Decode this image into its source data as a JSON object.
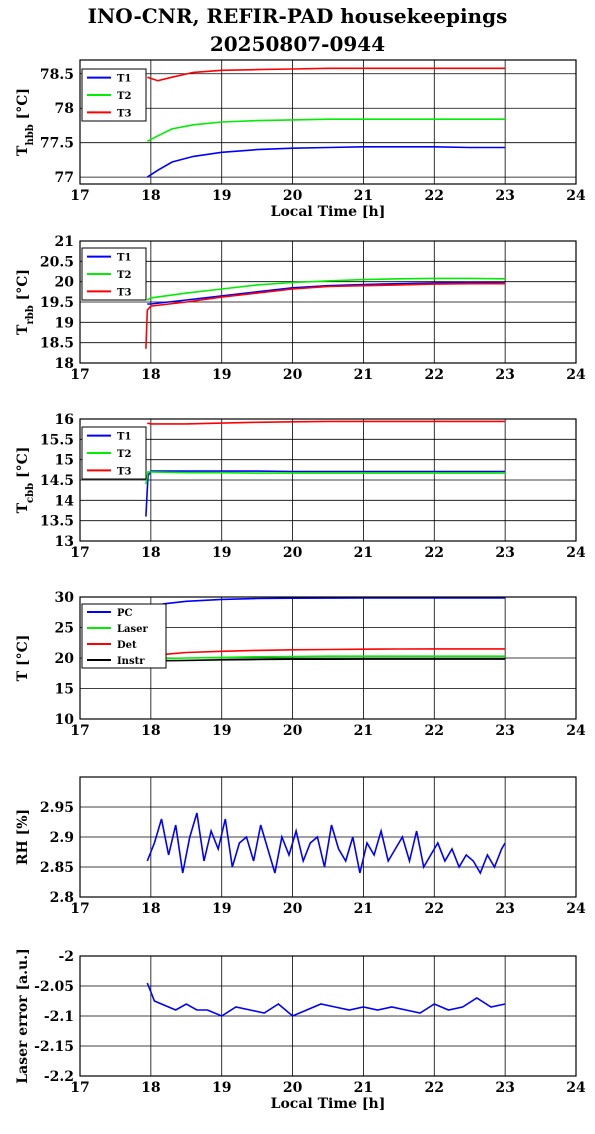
{
  "title": "INO-CNR, REFIR-PAD housekeepings",
  "subtitle": "20250807-0944",
  "chart_data": [
    {
      "type": "line",
      "ylabel_main": "T",
      "ylabel_sub": "hbb",
      "ylabel_unit": " [°C]",
      "xlabel": "Local Time [h]",
      "xlim": [
        17,
        24
      ],
      "xticks": [
        17,
        18,
        19,
        20,
        21,
        22,
        23,
        24
      ],
      "ylim": [
        76.9,
        78.7
      ],
      "yticks": [
        77,
        77.5,
        78,
        78.5
      ],
      "ytick_labels": [
        "77",
        "77.5",
        "78",
        "78.5"
      ],
      "gridlines": [
        77,
        77.5,
        78,
        78.5
      ],
      "grid": true,
      "legend": "top-left",
      "series": [
        {
          "name": "T1",
          "color": "#0000ff",
          "x": [
            17.95,
            18.1,
            18.3,
            18.6,
            19,
            19.5,
            20,
            20.5,
            21,
            21.5,
            22,
            22.5,
            23
          ],
          "y": [
            77.0,
            77.1,
            77.22,
            77.3,
            77.36,
            77.4,
            77.42,
            77.43,
            77.44,
            77.44,
            77.44,
            77.43,
            77.43
          ]
        },
        {
          "name": "T2",
          "color": "#00ee00",
          "x": [
            17.95,
            18.1,
            18.3,
            18.6,
            19,
            19.5,
            20,
            20.5,
            21,
            21.5,
            22,
            22.5,
            23
          ],
          "y": [
            77.52,
            77.6,
            77.7,
            77.76,
            77.8,
            77.82,
            77.83,
            77.84,
            77.84,
            77.84,
            77.84,
            77.84,
            77.84
          ]
        },
        {
          "name": "T3",
          "color": "#ff0000",
          "x": [
            17.95,
            18.1,
            18.3,
            18.6,
            19,
            19.5,
            20,
            20.5,
            21,
            21.5,
            22,
            22.5,
            23
          ],
          "y": [
            78.45,
            78.4,
            78.45,
            78.52,
            78.55,
            78.56,
            78.57,
            78.58,
            78.58,
            78.58,
            78.58,
            78.58,
            78.58
          ]
        }
      ]
    },
    {
      "type": "line",
      "ylabel_main": "T",
      "ylabel_sub": "rbb",
      "ylabel_unit": " [°C]",
      "xlabel": "",
      "xlim": [
        17,
        24
      ],
      "xticks": [
        17,
        18,
        19,
        20,
        21,
        22,
        23,
        24
      ],
      "ylim": [
        18,
        21
      ],
      "yticks": [
        18,
        18.5,
        19,
        19.5,
        20,
        20.5,
        21
      ],
      "ytick_labels": [
        "18",
        "18.5",
        "19",
        "19.5",
        "20",
        "20.5",
        "21"
      ],
      "gridlines": [
        18.5,
        19,
        19.5,
        20,
        20.5
      ],
      "grid": true,
      "legend": "top-left",
      "series": [
        {
          "name": "T1",
          "color": "#0000ff",
          "x": [
            17.95,
            18.0,
            18.5,
            19,
            19.5,
            20,
            20.5,
            21,
            21.5,
            22,
            22.5,
            23
          ],
          "y": [
            19.45,
            19.45,
            19.55,
            19.65,
            19.75,
            19.85,
            19.9,
            19.93,
            19.95,
            19.97,
            19.98,
            19.97
          ]
        },
        {
          "name": "T2",
          "color": "#00ee00",
          "x": [
            17.95,
            18.0,
            18.5,
            19,
            19.5,
            20,
            20.5,
            21,
            21.5,
            22,
            22.5,
            23
          ],
          "y": [
            19.55,
            19.6,
            19.72,
            19.82,
            19.92,
            19.98,
            20.02,
            20.05,
            20.07,
            20.08,
            20.08,
            20.07
          ]
        },
        {
          "name": "T3",
          "color": "#ff0000",
          "x": [
            17.93,
            17.95,
            18.0,
            18.5,
            19,
            19.5,
            20,
            20.5,
            21,
            21.5,
            22,
            22.5,
            23
          ],
          "y": [
            18.35,
            19.3,
            19.4,
            19.5,
            19.62,
            19.72,
            19.82,
            19.88,
            19.9,
            19.92,
            19.94,
            19.95,
            19.95
          ]
        }
      ]
    },
    {
      "type": "line",
      "ylabel_main": "T",
      "ylabel_sub": "cbb",
      "ylabel_unit": " [°C]",
      "xlabel": "",
      "xlim": [
        17,
        24
      ],
      "xticks": [
        17,
        18,
        19,
        20,
        21,
        22,
        23,
        24
      ],
      "ylim": [
        13,
        16
      ],
      "yticks": [
        13,
        13.5,
        14,
        14.5,
        15,
        15.5,
        16
      ],
      "ytick_labels": [
        "13",
        "13.5",
        "14",
        "14.5",
        "15",
        "15.5",
        "16"
      ],
      "gridlines": [
        13.5,
        14,
        14.5,
        15,
        15.5
      ],
      "grid": true,
      "legend": "top-left",
      "series": [
        {
          "name": "T1",
          "color": "#0000ff",
          "x": [
            17.93,
            17.96,
            18.0,
            18.5,
            19,
            19.5,
            20,
            20.5,
            21,
            21.5,
            22,
            22.5,
            23
          ],
          "y": [
            13.6,
            14.6,
            14.72,
            14.72,
            14.72,
            14.72,
            14.71,
            14.71,
            14.71,
            14.71,
            14.71,
            14.71,
            14.71
          ]
        },
        {
          "name": "T2",
          "color": "#00ee00",
          "x": [
            17.93,
            17.96,
            18.0,
            18.5,
            19,
            19.5,
            20,
            20.5,
            21,
            21.5,
            22,
            22.5,
            23
          ],
          "y": [
            14.4,
            14.7,
            14.7,
            14.68,
            14.68,
            14.67,
            14.67,
            14.67,
            14.67,
            14.67,
            14.67,
            14.67,
            14.67
          ]
        },
        {
          "name": "T3",
          "color": "#ff0000",
          "x": [
            17.95,
            18.0,
            18.5,
            19,
            19.5,
            20,
            20.5,
            21,
            21.5,
            22,
            22.5,
            23
          ],
          "y": [
            15.9,
            15.88,
            15.88,
            15.9,
            15.92,
            15.93,
            15.94,
            15.94,
            15.94,
            15.94,
            15.94,
            15.94
          ]
        }
      ]
    },
    {
      "type": "line",
      "ylabel_main": "T [°C]",
      "ylabel_sub": "",
      "ylabel_unit": "",
      "xlabel": "",
      "xlim": [
        17,
        24
      ],
      "xticks": [
        17,
        18,
        19,
        20,
        21,
        22,
        23,
        24
      ],
      "ylim": [
        10,
        30
      ],
      "yticks": [
        10,
        15,
        20,
        25,
        30
      ],
      "ytick_labels": [
        "10",
        "15",
        "20",
        "25",
        "30"
      ],
      "gridlines": [
        15,
        20,
        25
      ],
      "grid": true,
      "legend": "top-left",
      "series": [
        {
          "name": "PC",
          "color": "#0000ff",
          "x": [
            17.95,
            18.2,
            18.5,
            19,
            19.5,
            20,
            20.5,
            21,
            21.5,
            22,
            22.5,
            23
          ],
          "y": [
            28.3,
            28.9,
            29.3,
            29.6,
            29.75,
            29.8,
            29.82,
            29.83,
            29.84,
            29.84,
            29.84,
            29.84
          ]
        },
        {
          "name": "Laser",
          "color": "#00ee00",
          "x": [
            17.95,
            18.5,
            19,
            19.5,
            20,
            20.5,
            21,
            21.5,
            22,
            22.5,
            23
          ],
          "y": [
            19.8,
            20.0,
            20.1,
            20.2,
            20.25,
            20.3,
            20.3,
            20.3,
            20.3,
            20.3,
            20.3
          ]
        },
        {
          "name": "Det",
          "color": "#ff0000",
          "x": [
            17.95,
            18.2,
            18.5,
            19,
            19.5,
            20,
            20.5,
            21,
            21.5,
            22,
            22.5,
            23
          ],
          "y": [
            20.2,
            20.6,
            20.9,
            21.1,
            21.25,
            21.35,
            21.4,
            21.45,
            21.48,
            21.5,
            21.5,
            21.5
          ]
        },
        {
          "name": "Instr",
          "color": "#000000",
          "x": [
            17.95,
            18.5,
            19,
            19.5,
            20,
            20.5,
            21,
            21.5,
            22,
            22.5,
            23
          ],
          "y": [
            19.5,
            19.6,
            19.7,
            19.75,
            19.8,
            19.8,
            19.82,
            19.82,
            19.82,
            19.82,
            19.82
          ]
        }
      ]
    },
    {
      "type": "line",
      "ylabel_main": "RH [%]",
      "ylabel_sub": "",
      "ylabel_unit": "",
      "xlabel": "",
      "xlim": [
        17,
        24
      ],
      "xticks": [
        17,
        18,
        19,
        20,
        21,
        22,
        23,
        24
      ],
      "ylim": [
        2.8,
        3.0
      ],
      "yticks": [
        2.8,
        2.85,
        2.9,
        2.95
      ],
      "ytick_labels": [
        "2.8",
        "2.85",
        "2.9",
        "2.95"
      ],
      "gridlines": [
        2.85,
        2.9,
        2.95
      ],
      "grid": true,
      "legend": "none",
      "series": [
        {
          "name": "",
          "color": "#0000ff",
          "x": [
            17.95,
            18.05,
            18.15,
            18.25,
            18.35,
            18.45,
            18.55,
            18.65,
            18.75,
            18.85,
            18.95,
            19.05,
            19.15,
            19.25,
            19.35,
            19.45,
            19.55,
            19.65,
            19.75,
            19.85,
            19.95,
            20.05,
            20.15,
            20.25,
            20.35,
            20.45,
            20.55,
            20.65,
            20.75,
            20.85,
            20.95,
            21.05,
            21.15,
            21.25,
            21.35,
            21.45,
            21.55,
            21.65,
            21.75,
            21.85,
            21.95,
            22.05,
            22.15,
            22.25,
            22.35,
            22.45,
            22.55,
            22.65,
            22.75,
            22.85,
            22.95,
            23.0
          ],
          "y": [
            2.86,
            2.89,
            2.93,
            2.87,
            2.92,
            2.84,
            2.9,
            2.94,
            2.86,
            2.91,
            2.88,
            2.93,
            2.85,
            2.89,
            2.9,
            2.86,
            2.92,
            2.88,
            2.84,
            2.9,
            2.87,
            2.91,
            2.86,
            2.89,
            2.9,
            2.85,
            2.92,
            2.88,
            2.86,
            2.9,
            2.84,
            2.89,
            2.87,
            2.91,
            2.86,
            2.88,
            2.9,
            2.86,
            2.91,
            2.85,
            2.87,
            2.89,
            2.86,
            2.88,
            2.85,
            2.87,
            2.86,
            2.84,
            2.87,
            2.85,
            2.88,
            2.89
          ]
        }
      ]
    },
    {
      "type": "line",
      "ylabel_main": "Laser error [a.u.]",
      "ylabel_sub": "",
      "ylabel_unit": "",
      "xlabel": "Local Time [h]",
      "xlim": [
        17,
        24
      ],
      "xticks": [
        17,
        18,
        19,
        20,
        21,
        22,
        23,
        24
      ],
      "ylim": [
        -2.2,
        -2.0
      ],
      "yticks": [
        -2.2,
        -2.15,
        -2.1,
        -2.05,
        -2.0
      ],
      "ytick_labels": [
        "-2.2",
        "-2.15",
        "-2.1",
        "-2.05",
        "-2"
      ],
      "gridlines": [
        -2.15,
        -2.1,
        -2.05
      ],
      "grid": true,
      "legend": "none",
      "series": [
        {
          "name": "",
          "color": "#0000ff",
          "x": [
            17.95,
            18.0,
            18.05,
            18.15,
            18.25,
            18.35,
            18.5,
            18.65,
            18.8,
            19.0,
            19.2,
            19.4,
            19.6,
            19.8,
            20.0,
            20.2,
            20.4,
            20.6,
            20.8,
            21.0,
            21.2,
            21.4,
            21.6,
            21.8,
            22.0,
            22.2,
            22.4,
            22.6,
            22.8,
            23.0
          ],
          "y": [
            -2.045,
            -2.06,
            -2.075,
            -2.08,
            -2.085,
            -2.09,
            -2.08,
            -2.09,
            -2.09,
            -2.1,
            -2.085,
            -2.09,
            -2.095,
            -2.08,
            -2.1,
            -2.09,
            -2.08,
            -2.085,
            -2.09,
            -2.085,
            -2.09,
            -2.085,
            -2.09,
            -2.095,
            -2.08,
            -2.09,
            -2.085,
            -2.07,
            -2.085,
            -2.08
          ]
        }
      ]
    }
  ]
}
